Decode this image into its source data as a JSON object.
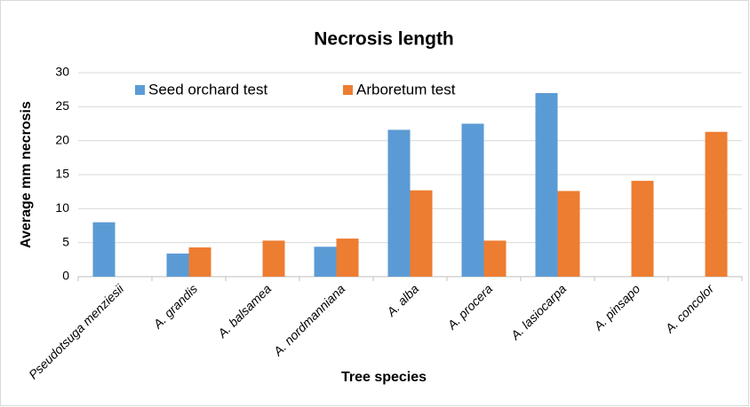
{
  "chart_data": {
    "type": "bar",
    "title": "Necrosis length",
    "x_label": "Tree species",
    "y_label": "Average mm necrosis",
    "categories": [
      "Pseudotsuga menziesii",
      "A. grandis",
      "A. balsamea",
      "A. nordmanniana",
      "A. alba",
      "A. procera",
      "A. lasiocarpa",
      "A. pinsapo",
      "A. concolor"
    ],
    "series": [
      {
        "name": "Seed orchard test",
        "color": "#5b9bd5",
        "values": [
          8,
          3.4,
          null,
          4.4,
          21.6,
          22.5,
          27,
          null,
          null
        ]
      },
      {
        "name": "Arboretum test",
        "color": "#ed7d31",
        "values": [
          null,
          4.3,
          5.3,
          5.6,
          12.7,
          5.3,
          12.6,
          14.1,
          21.3
        ]
      }
    ],
    "ylim": [
      0,
      30
    ],
    "yticks": [
      0,
      5,
      10,
      15,
      20,
      25,
      30
    ],
    "grid": true,
    "legend": "top"
  }
}
